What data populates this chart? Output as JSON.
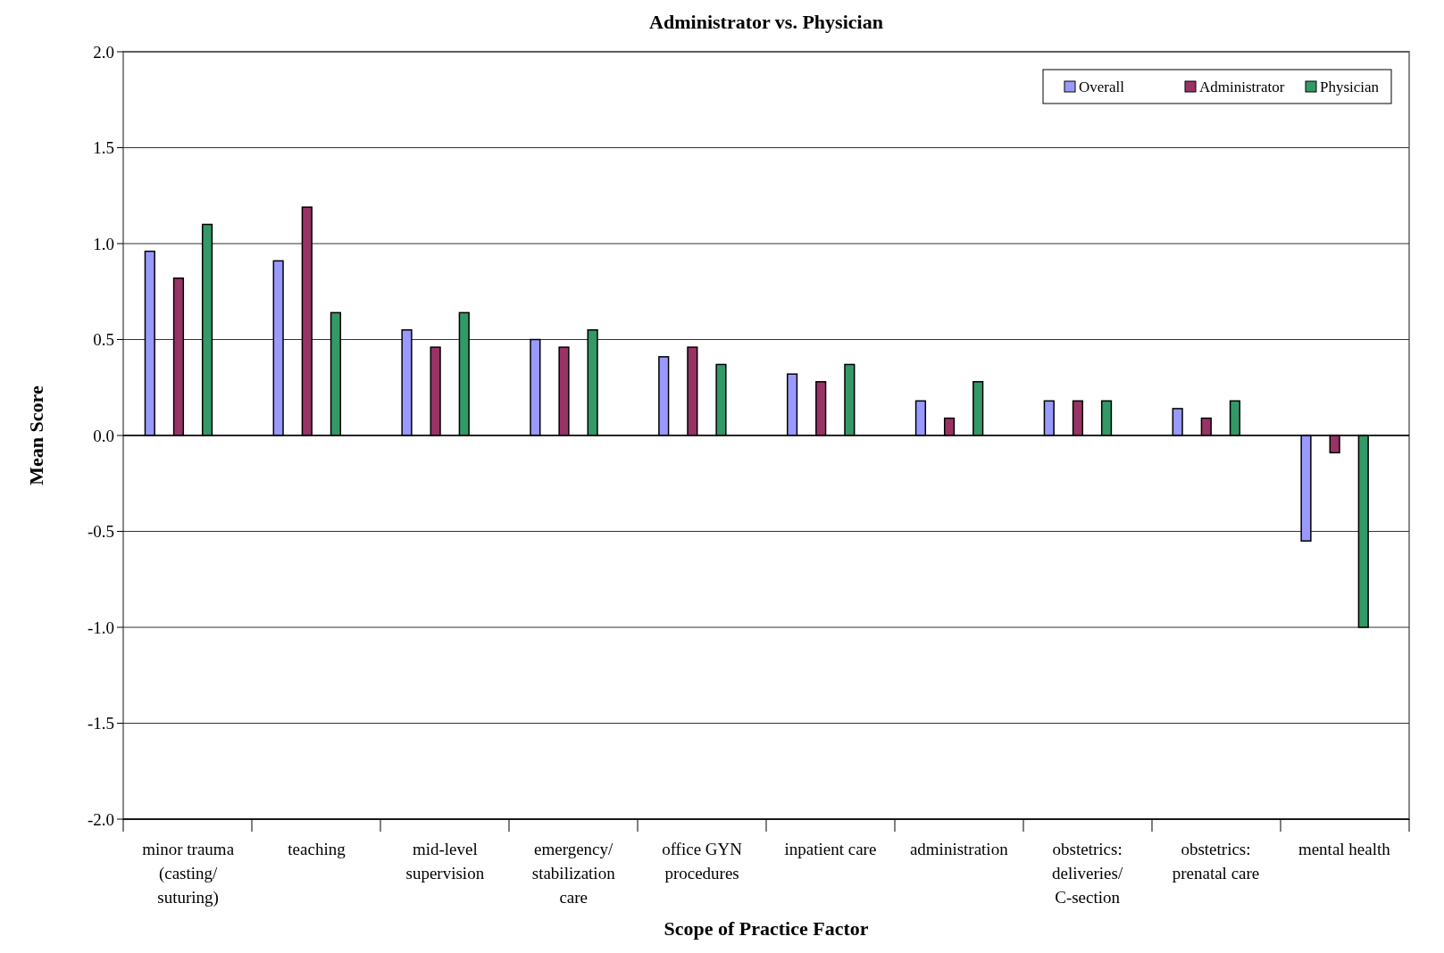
{
  "chart_data": {
    "type": "bar",
    "title": "Administrator vs. Physician",
    "xlabel": "Scope of Practice Factor",
    "ylabel": "Mean Score",
    "categories": [
      "minor trauma (casting/ suturing)",
      "teaching",
      "mid-level supervision",
      "emergency/ stabilization care",
      "office GYN procedures",
      "inpatient care",
      "administration",
      "obstetrics: deliveries/ C-section",
      "obstetrics: prenatal care",
      "mental health"
    ],
    "series": [
      {
        "name": "Overall",
        "color": "#9999ff",
        "values": [
          0.96,
          0.91,
          0.55,
          0.5,
          0.41,
          0.32,
          0.18,
          0.18,
          0.14,
          -0.55
        ]
      },
      {
        "name": "Administrator",
        "color": "#993366",
        "values": [
          0.82,
          1.19,
          0.46,
          0.46,
          0.46,
          0.28,
          0.09,
          0.18,
          0.09,
          -0.09
        ]
      },
      {
        "name": "Physician",
        "color": "#339966",
        "values": [
          1.1,
          0.64,
          0.64,
          0.55,
          0.37,
          0.37,
          0.28,
          0.18,
          0.18,
          -1.0
        ]
      }
    ],
    "ylim": [
      -2,
      2
    ],
    "yticks": [
      {
        "value": -2,
        "label": "-2.0"
      },
      {
        "value": -1.5,
        "label": "-1.5"
      },
      {
        "value": -1,
        "label": "-1.0"
      },
      {
        "value": -0.5,
        "label": "-0.5"
      },
      {
        "value": 0,
        "label": "0.0"
      },
      {
        "value": 0.5,
        "label": "0.5"
      },
      {
        "value": 1,
        "label": "1.0"
      },
      {
        "value": 1.5,
        "label": "1.5"
      },
      {
        "value": 2,
        "label": "2.0"
      }
    ],
    "grid": "y",
    "legend": "top right"
  }
}
